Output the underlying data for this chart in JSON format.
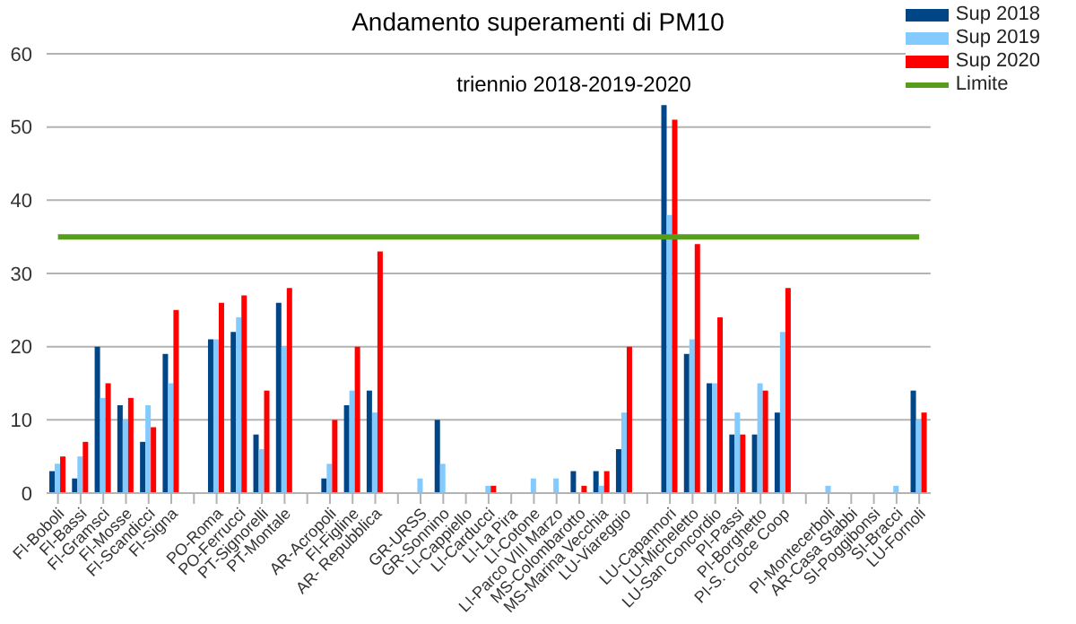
{
  "chart_data": {
    "type": "bar",
    "title": "Andamento superamenti di PM10",
    "subtitle": "triennio 2018-2019-2020",
    "categories": [
      "FI-Boboli",
      "FI-Bassi",
      "FI-Gramsci",
      "FI-Mosse",
      "FI-Scandicci",
      "FI-Signa",
      null,
      "PO-Roma",
      "PO-Ferrucci",
      "PT-Signorelli",
      "PT-Montale",
      null,
      "AR-Acropoli",
      "FI-Figline",
      "AR- Repubblica",
      null,
      "GR-URSS",
      "GR-Sonnino",
      "LI-Cappiello",
      "LI-Carducci",
      "LI-La Pira",
      "LI-Cotone",
      "LI-Parco VIII Marzo",
      "MS-Colombarotto",
      "MS-Marina Vecchia",
      "LU-Viareggio",
      null,
      "LU-Capannori",
      "LU-Micheletto",
      "LU-San Concordio",
      "PI-Passi",
      "PI-Borghetto",
      "PI-S. Croce Coop",
      null,
      "PI-Montecerboli",
      "AR-Casa Stabbi",
      "SI-Poggibonsi",
      "SI-Bracci",
      "LU-Fornoli"
    ],
    "series": [
      {
        "name": "Sup 2018",
        "color": "#004586",
        "values": [
          3,
          2,
          20,
          12,
          7,
          19,
          null,
          21,
          22,
          8,
          26,
          null,
          2,
          12,
          14,
          null,
          0,
          10,
          0,
          0,
          0,
          0,
          0,
          3,
          3,
          6,
          null,
          53,
          19,
          15,
          8,
          8,
          11,
          null,
          0,
          0,
          0,
          0,
          14
        ]
      },
      {
        "name": "Sup 2019",
        "color": "#83caff",
        "values": [
          4,
          5,
          13,
          10,
          12,
          15,
          null,
          21,
          24,
          6,
          20,
          null,
          4,
          14,
          11,
          null,
          2,
          4,
          0,
          1,
          0,
          2,
          2,
          0,
          1,
          11,
          null,
          38,
          21,
          15,
          11,
          15,
          22,
          null,
          1,
          0,
          0,
          1,
          10
        ]
      },
      {
        "name": "Sup 2020",
        "color": "#ff0000",
        "values": [
          5,
          7,
          15,
          13,
          9,
          25,
          null,
          26,
          27,
          14,
          28,
          null,
          10,
          20,
          33,
          null,
          0,
          0,
          0,
          1,
          0,
          0,
          0,
          1,
          3,
          20,
          null,
          51,
          34,
          24,
          8,
          14,
          28,
          null,
          0,
          0,
          0,
          0,
          11
        ]
      },
      {
        "name": "Limite",
        "type": "line",
        "color": "#579d1c",
        "values": [
          35,
          35,
          35,
          35,
          35,
          35,
          35,
          35,
          35,
          35,
          35,
          35,
          35,
          35,
          35,
          35,
          35,
          35,
          35,
          35,
          35,
          35,
          35,
          35,
          35,
          35,
          35,
          35,
          35,
          35,
          35,
          35,
          35,
          35,
          35,
          35,
          35,
          35,
          35
        ]
      }
    ],
    "ylim": [
      0,
      60
    ],
    "yticks": [
      0,
      10,
      20,
      30,
      40,
      50,
      60
    ],
    "grid": "y",
    "legend": "top right",
    "marker": "none"
  }
}
